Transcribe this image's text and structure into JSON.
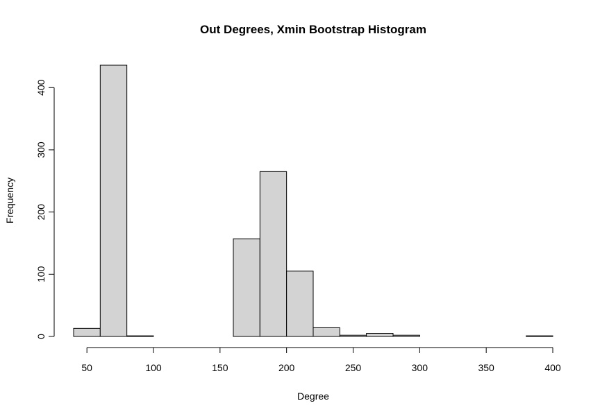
{
  "chart_data": {
    "type": "bar",
    "title": "Out Degrees, Xmin Bootstrap Histogram",
    "xlabel": "Degree",
    "ylabel": "Frequency",
    "bin_edges": [
      40,
      60,
      80,
      100,
      120,
      140,
      160,
      180,
      200,
      220,
      240,
      260,
      280,
      300,
      320,
      340,
      360,
      380,
      400
    ],
    "values": [
      13,
      436,
      1,
      0,
      0,
      0,
      157,
      265,
      105,
      14,
      2,
      5,
      2,
      0,
      0,
      0,
      0,
      1
    ],
    "xlim": [
      40,
      400
    ],
    "ylim": [
      0,
      436
    ],
    "x_ticks": [
      50,
      100,
      150,
      200,
      250,
      300,
      350,
      400
    ],
    "y_ticks": [
      0,
      100,
      200,
      300,
      400
    ],
    "bar_fill": "#d3d3d3",
    "bar_stroke": "#000000",
    "grid": false,
    "legend": "none"
  }
}
